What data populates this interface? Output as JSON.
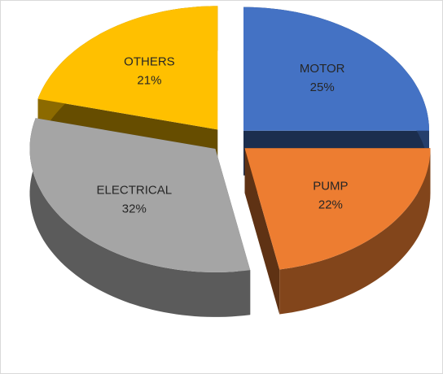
{
  "chart_data": {
    "type": "pie",
    "categories": [
      "MOTOR",
      "PUMP",
      "ELECTRICAL",
      "OTHERS"
    ],
    "values": [
      25,
      22,
      32,
      21
    ],
    "value_labels": [
      "25%",
      "22%",
      "32%",
      "21%"
    ],
    "colors": [
      "#4472c4",
      "#ed7d31",
      "#a5a5a5",
      "#ffc000"
    ],
    "exploded": true,
    "three_d": true
  }
}
